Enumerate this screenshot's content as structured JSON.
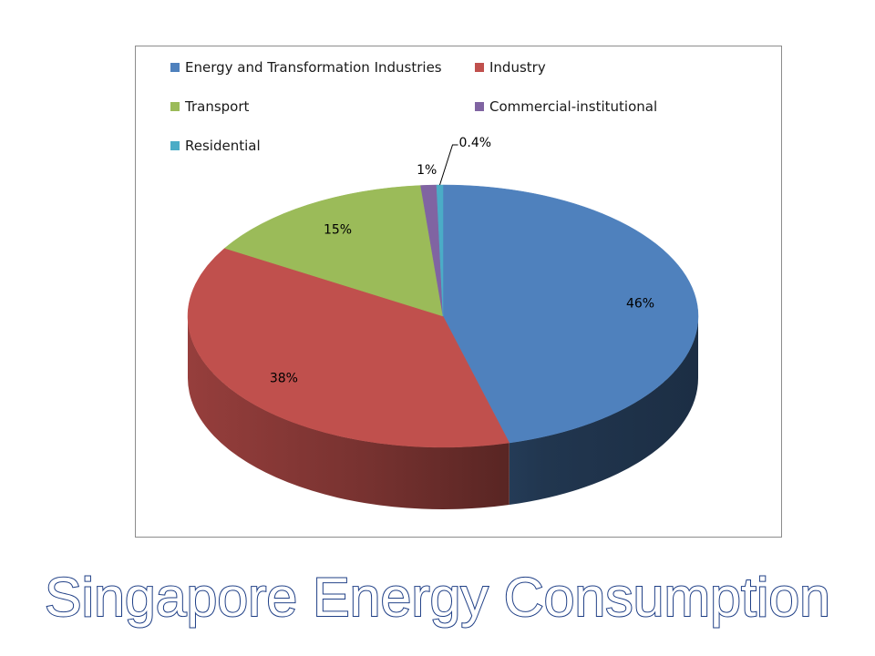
{
  "chart_data": {
    "type": "pie",
    "style": "3d",
    "title": "Singapore Energy Consumption",
    "legend_position": "top",
    "slices": [
      {
        "name": "Energy and Transformation Industries",
        "value": 46,
        "label": "46%",
        "color": "#4F81BD"
      },
      {
        "name": "Industry",
        "value": 38,
        "label": "38%",
        "color": "#C0504D"
      },
      {
        "name": "Transport",
        "value": 15,
        "label": "15%",
        "color": "#9BBB59"
      },
      {
        "name": "Commercial-institutional",
        "value": 1,
        "label": "1%",
        "color": "#8064A2"
      },
      {
        "name": "Residential",
        "value": 0.4,
        "label": "0.4%",
        "color": "#4BACC6"
      }
    ]
  }
}
